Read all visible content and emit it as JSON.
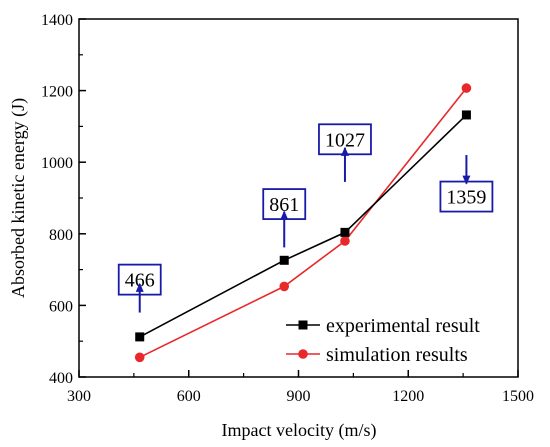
{
  "chart_data": {
    "type": "line",
    "xlabel": "Impact velocity (m/s)",
    "ylabel": "Absorbed kinetic energy (J)",
    "xlim": [
      300,
      1500
    ],
    "ylim": [
      400,
      1400
    ],
    "x_ticks": [
      300,
      600,
      900,
      1200,
      1500
    ],
    "y_ticks": [
      400,
      600,
      800,
      1000,
      1200,
      1400
    ],
    "x": [
      466,
      861,
      1027,
      1359
    ],
    "series": [
      {
        "name": "experimental result",
        "color": "#000000",
        "marker": "square",
        "values": [
          512,
          726,
          804,
          1132
        ]
      },
      {
        "name": "simulation results",
        "color": "#e8282b",
        "marker": "circle",
        "values": [
          455,
          653,
          780,
          1207
        ]
      }
    ],
    "legend_position": "bottom-right",
    "grid": false,
    "annotations": [
      {
        "label": "466",
        "x": 466,
        "y": 672,
        "arrow": "up",
        "arrow_from": 580,
        "arrow_to": 660
      },
      {
        "label": "861",
        "x": 861,
        "y": 883,
        "arrow": "up",
        "arrow_from": 762,
        "arrow_to": 862
      },
      {
        "label": "1027",
        "x": 1027,
        "y": 1064,
        "arrow": "up",
        "arrow_from": 945,
        "arrow_to": 1040
      },
      {
        "label": "1359",
        "x": 1359,
        "y": 904,
        "arrow": "down",
        "arrow_from": 1020,
        "arrow_to": 940
      }
    ],
    "callout_color": "#1a1aa8"
  }
}
